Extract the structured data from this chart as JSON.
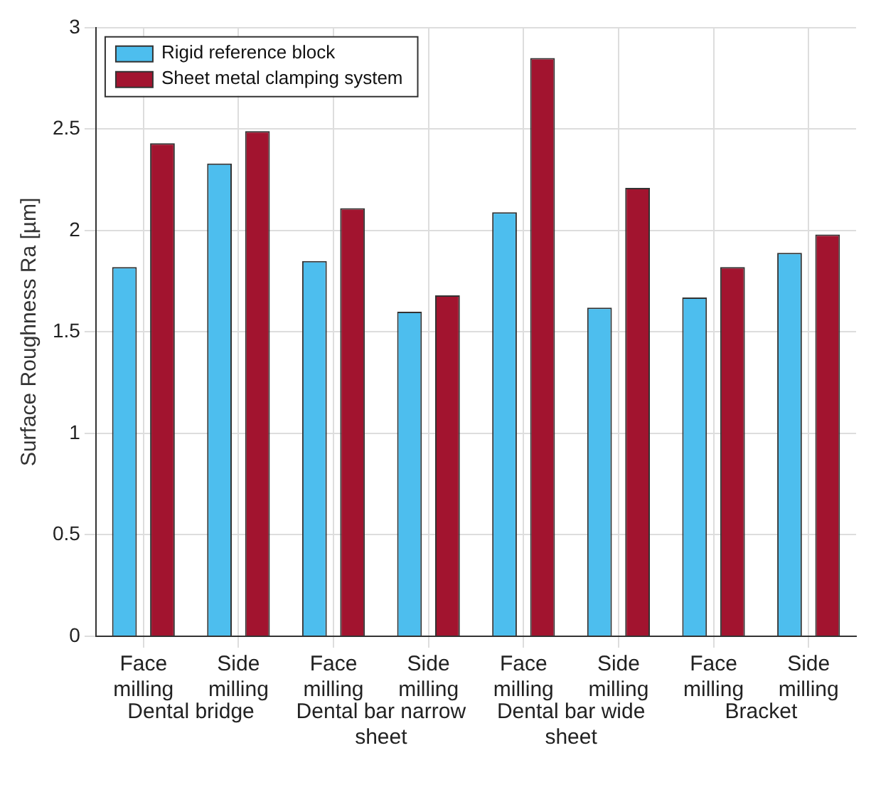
{
  "chart_data": {
    "type": "bar",
    "ylabel": "Surface Roughness Ra [µm]",
    "categories": [
      "Face milling",
      "Side milling",
      "Face milling",
      "Side milling",
      "Face milling",
      "Side milling",
      "Face milling",
      "Side milling"
    ],
    "series": [
      {
        "name": "Rigid reference block",
        "color": "#4dbeee",
        "values": [
          1.82,
          2.33,
          1.85,
          1.6,
          2.09,
          1.62,
          1.67,
          1.89
        ]
      },
      {
        "name": "Sheet metal clamping system",
        "color": "#a2142f",
        "values": [
          2.43,
          2.49,
          2.11,
          1.68,
          2.85,
          2.21,
          1.82,
          1.98
        ]
      }
    ],
    "annotations": [
      "Dental bridge",
      "Dental bar narrow sheet",
      "Dental bar wide sheet",
      "Bracket"
    ],
    "ylim": [
      0,
      3
    ],
    "yticks": [
      0,
      0.5,
      1,
      1.5,
      2,
      2.5,
      3
    ],
    "grid": true,
    "legend": "top left"
  }
}
